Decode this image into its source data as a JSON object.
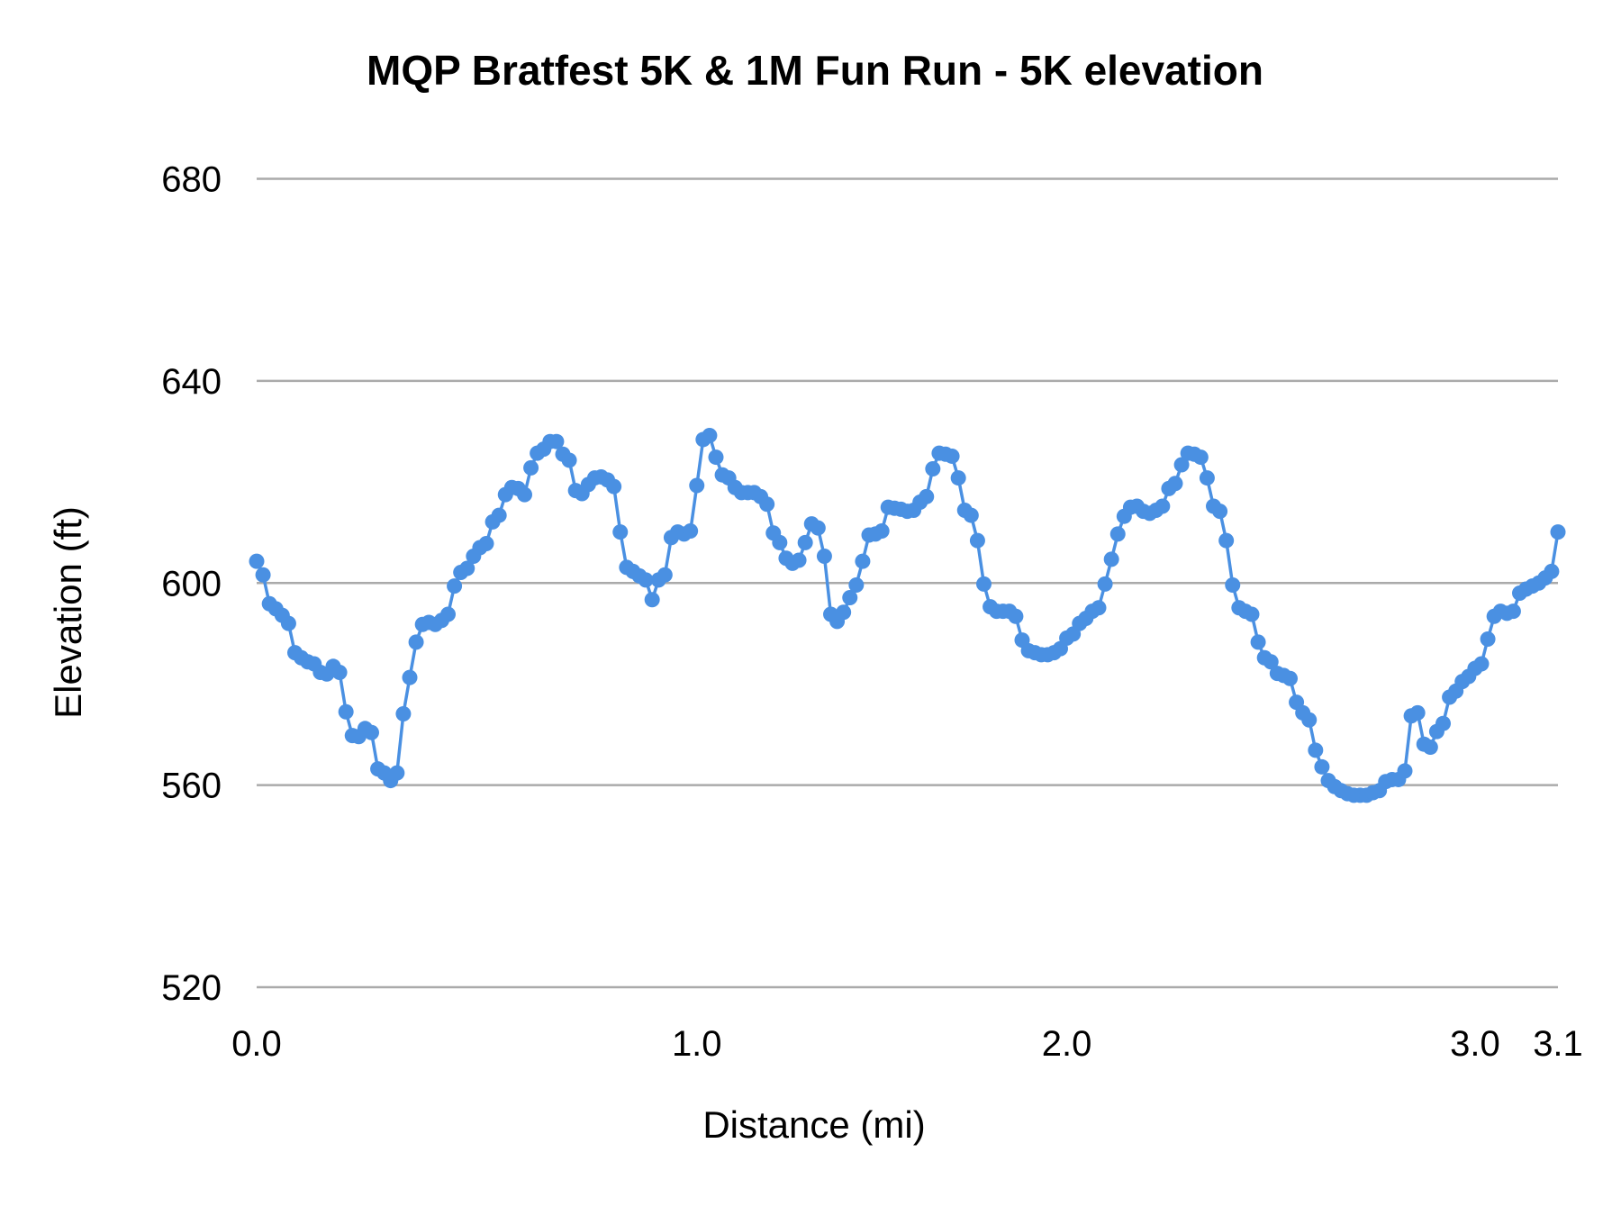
{
  "chart_data": {
    "type": "line",
    "title": "MQP Bratfest 5K & 1M Fun Run - 5K elevation",
    "xlabel": "Distance (mi)",
    "ylabel": "Elevation (ft)",
    "ylim": [
      520,
      680
    ],
    "y_ticks": [
      "520",
      "560",
      "600",
      "640",
      "680"
    ],
    "x_ticks": [
      {
        "label": "0.0",
        "point_index": 0
      },
      {
        "label": "1.0",
        "point_index": 69
      },
      {
        "label": "2.0",
        "point_index": 127
      },
      {
        "label": "3.0",
        "point_index": 191
      },
      {
        "label": "3.1",
        "point_index": 204
      }
    ],
    "grid": "horizontal",
    "legend": "none",
    "markers": true,
    "series": [
      {
        "color": "#4a90e2",
        "values": [
          604.3,
          601.6,
          595.9,
          594.9,
          593.6,
          592,
          586.2,
          585.2,
          584.4,
          584,
          582.3,
          582,
          583.5,
          582.3,
          574.5,
          569.8,
          569.6,
          571.2,
          570.4,
          563.2,
          562.4,
          560.9,
          562.4,
          574.1,
          581.3,
          588.3,
          591.8,
          592.2,
          591.8,
          592.6,
          593.8,
          599.4,
          602.1,
          602.9,
          605.3,
          607,
          607.8,
          612.1,
          613.4,
          617.5,
          618.9,
          618.7,
          617.5,
          622.8,
          625.7,
          626.5,
          628,
          628,
          625.5,
          624.3,
          618.3,
          617.7,
          619.5,
          620.8,
          621,
          620.4,
          619.1,
          610.1,
          603.1,
          602.3,
          601.4,
          600.6,
          596.7,
          600.6,
          601.6,
          609,
          610.1,
          609.7,
          610.3,
          619.3,
          628.4,
          629.2,
          624.9,
          621.4,
          620.8,
          618.9,
          617.9,
          617.9,
          617.9,
          617.1,
          615.6,
          609.9,
          608,
          604.9,
          603.9,
          604.5,
          608,
          611.7,
          610.9,
          605.3,
          593.8,
          592.4,
          594.2,
          597.1,
          599.6,
          604.3,
          609.5,
          609.7,
          610.3,
          615,
          614.8,
          614.6,
          614.2,
          614.4,
          616,
          617.1,
          622.6,
          625.7,
          625.5,
          625.1,
          620.8,
          614.4,
          613.4,
          608.4,
          599.8,
          595.3,
          594.4,
          594.4,
          594.4,
          593.4,
          588.7,
          586.6,
          586.2,
          585.8,
          585.8,
          586.2,
          587,
          589.1,
          589.9,
          592,
          593,
          594.4,
          595.1,
          599.8,
          604.7,
          609.7,
          613.2,
          615,
          615.2,
          614.2,
          613.8,
          614.4,
          615.2,
          618.7,
          619.7,
          623.4,
          625.7,
          625.5,
          624.9,
          620.8,
          615.2,
          614.2,
          608.4,
          599.6,
          595.1,
          594.4,
          593.8,
          588.3,
          585.2,
          584.4,
          582.1,
          581.7,
          581.1,
          576.4,
          574.3,
          572.9,
          566.9,
          563.6,
          560.9,
          559.7,
          558.9,
          558.3,
          558,
          558,
          558,
          558.5,
          558.9,
          560.7,
          561.1,
          561.1,
          562.8,
          573.7,
          574.3,
          568.1,
          567.5,
          570.6,
          572.2,
          577.4,
          578.6,
          580.5,
          581.5,
          583.1,
          584,
          588.9,
          593.4,
          594.4,
          594,
          594.4,
          598,
          598.8,
          599.4,
          600,
          601,
          602.3,
          610.1
        ]
      }
    ]
  }
}
